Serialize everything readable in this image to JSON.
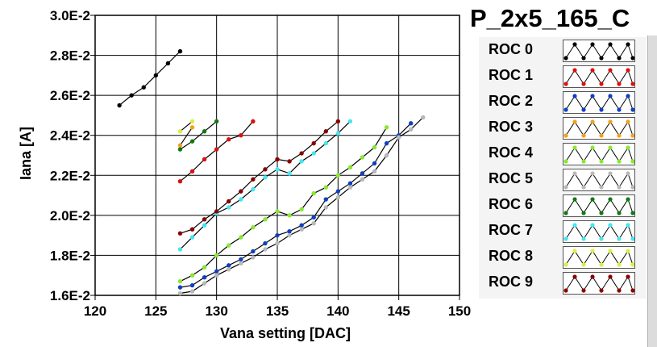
{
  "legend": {
    "title": "P_2x5_165_C",
    "items": [
      {
        "label": "ROC 0",
        "color": "#000000"
      },
      {
        "label": "ROC 1",
        "color": "#dd1010"
      },
      {
        "label": "ROC 2",
        "color": "#1040c0"
      },
      {
        "label": "ROC 3",
        "color": "#f0a020"
      },
      {
        "label": "ROC 4",
        "color": "#88e830"
      },
      {
        "label": "ROC 5",
        "color": "#b8b8b8"
      },
      {
        "label": "ROC 6",
        "color": "#107a10"
      },
      {
        "label": "ROC 7",
        "color": "#40e8f0"
      },
      {
        "label": "ROC 8",
        "color": "#d8f040"
      },
      {
        "label": "ROC 9",
        "color": "#8a0000"
      }
    ]
  },
  "chart_data": {
    "type": "line",
    "title": "",
    "xlabel": "Vana setting [DAC]",
    "ylabel": "Iana [A]",
    "xlim": [
      120,
      150
    ],
    "ylim": [
      0.016,
      0.03
    ],
    "xticks": [
      120,
      125,
      130,
      135,
      140,
      145,
      150
    ],
    "xtick_labels": [
      "120",
      "125",
      "130",
      "135",
      "140",
      "145",
      "150"
    ],
    "yticks": [
      0.016,
      0.018,
      0.02,
      0.022,
      0.024,
      0.026,
      0.028,
      0.03
    ],
    "ytick_labels": [
      "1.6E-2",
      "1.8E-2",
      "2.0E-2",
      "2.2E-2",
      "2.4E-2",
      "2.6E-2",
      "2.8E-2",
      "3.0E-2"
    ],
    "grid": true,
    "series": [
      {
        "name": "ROC 0",
        "color": "#000000",
        "x": [
          122,
          123,
          124,
          125,
          126,
          127
        ],
        "y": [
          0.0255,
          0.026,
          0.0264,
          0.027,
          0.0276,
          0.0282
        ]
      },
      {
        "name": "ROC 1",
        "color": "#dd1010",
        "x": [
          127,
          128,
          129,
          130,
          131,
          132,
          133
        ],
        "y": [
          0.0217,
          0.0222,
          0.0228,
          0.0233,
          0.0238,
          0.024,
          0.0247
        ]
      },
      {
        "name": "ROC 2",
        "color": "#1040c0",
        "x": [
          127,
          128,
          129,
          130,
          131,
          132,
          133,
          134,
          135,
          136,
          137,
          138,
          139,
          140,
          141,
          142,
          143,
          144,
          145,
          146
        ],
        "y": [
          0.0164,
          0.0165,
          0.0169,
          0.0172,
          0.0175,
          0.0178,
          0.0182,
          0.0186,
          0.019,
          0.0192,
          0.0195,
          0.0199,
          0.0208,
          0.0212,
          0.0216,
          0.0221,
          0.0226,
          0.0236,
          0.024,
          0.0246
        ]
      },
      {
        "name": "ROC 3",
        "color": "#f0a020",
        "x": [
          127,
          128
        ],
        "y": [
          0.0235,
          0.0244
        ]
      },
      {
        "name": "ROC 4",
        "color": "#88e830",
        "x": [
          127,
          128,
          129,
          130,
          131,
          132,
          133,
          134,
          135,
          136,
          137,
          138,
          139,
          140,
          141,
          142,
          143,
          144
        ],
        "y": [
          0.0167,
          0.017,
          0.0174,
          0.018,
          0.0185,
          0.0189,
          0.0194,
          0.0198,
          0.0202,
          0.02,
          0.0203,
          0.0211,
          0.0214,
          0.022,
          0.0224,
          0.0229,
          0.0234,
          0.0244
        ]
      },
      {
        "name": "ROC 5",
        "color": "#b8b8b8",
        "x": [
          127,
          128,
          129,
          130,
          131,
          132,
          133,
          134,
          135,
          136,
          137,
          138,
          139,
          140,
          141,
          142,
          143,
          144,
          145,
          146,
          147
        ],
        "y": [
          0.0161,
          0.0162,
          0.0166,
          0.017,
          0.0173,
          0.0176,
          0.0179,
          0.0183,
          0.0186,
          0.019,
          0.0193,
          0.0196,
          0.0204,
          0.0209,
          0.0214,
          0.0218,
          0.0222,
          0.023,
          0.0239,
          0.0243,
          0.0249
        ]
      },
      {
        "name": "ROC 6",
        "color": "#107a10",
        "x": [
          127,
          128,
          129,
          130
        ],
        "y": [
          0.0233,
          0.0237,
          0.0242,
          0.0247
        ]
      },
      {
        "name": "ROC 7",
        "color": "#40e8f0",
        "x": [
          127,
          128,
          129,
          130,
          131,
          132,
          133,
          134,
          135,
          136,
          137,
          138,
          139,
          140,
          141
        ],
        "y": [
          0.0183,
          0.0189,
          0.0195,
          0.0201,
          0.0204,
          0.0208,
          0.0213,
          0.0219,
          0.0223,
          0.0221,
          0.0227,
          0.0231,
          0.0236,
          0.0241,
          0.0247
        ]
      },
      {
        "name": "ROC 8",
        "color": "#d8f040",
        "x": [
          127,
          128
        ],
        "y": [
          0.0242,
          0.0247
        ]
      },
      {
        "name": "ROC 9",
        "color": "#8a0000",
        "x": [
          127,
          128,
          129,
          130,
          131,
          132,
          133,
          134,
          135,
          136,
          137,
          138,
          139,
          140
        ],
        "y": [
          0.0191,
          0.0193,
          0.0198,
          0.0202,
          0.0207,
          0.0212,
          0.0218,
          0.0223,
          0.0228,
          0.0227,
          0.0231,
          0.0236,
          0.0242,
          0.0247
        ]
      }
    ]
  }
}
